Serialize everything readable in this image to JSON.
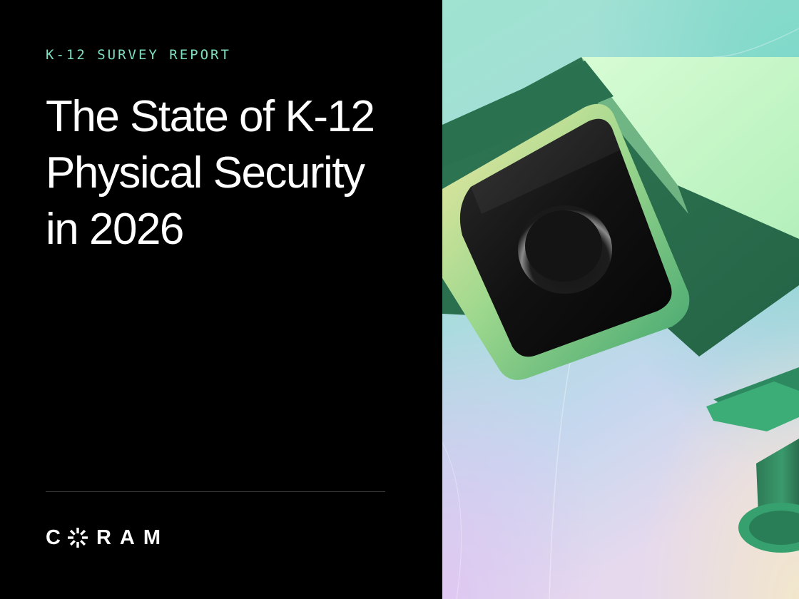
{
  "cover": {
    "eyebrow": "K-12 SURVEY REPORT",
    "title_lines": [
      "The State of K-12",
      "Physical Security",
      "in 2026"
    ]
  },
  "brand": {
    "logo_first_letter": "C",
    "logo_rest": "RAM",
    "logo_mark_icon": "sunburst-o-icon"
  },
  "illustration": {
    "icon": "security-camera-icon"
  },
  "colors": {
    "background": "#000000",
    "eyebrow_accent": "#7ee0c0",
    "title_text": "#ffffff",
    "camera_dark_green": "#2a6e50",
    "camera_light_green": "#c2f5c6"
  }
}
